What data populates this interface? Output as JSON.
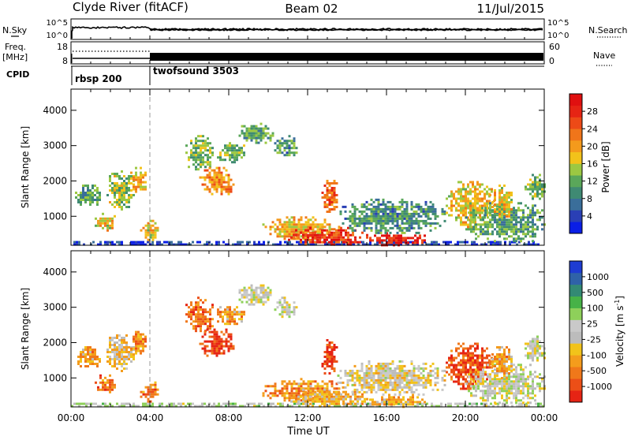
{
  "header": {
    "station": "Clyde River (fitACF)",
    "beam": "Beam 02",
    "date": "11/Jul/2015"
  },
  "strip_panels": {
    "nsky": {
      "left_label": "N.Sky",
      "right_label": "N.Search",
      "left_ticks": [
        "10^5",
        "10^0"
      ],
      "right_ticks": [
        "10^5",
        "10^0"
      ]
    },
    "freq": {
      "left_label_line1": "Freq.",
      "left_label_line2": "[MHz]",
      "right_label": "Nave",
      "left_ticks": [
        "18",
        "8"
      ],
      "right_ticks": [
        "60",
        "0"
      ]
    },
    "cpid": {
      "label": "CPID",
      "segments": [
        {
          "name": "rbsp 200",
          "start_hour": 0.0
        },
        {
          "name": "twofsound 3503",
          "start_hour": 4.0
        }
      ]
    }
  },
  "colorbars": {
    "power": {
      "label": "Power [dB]",
      "tick_labels": [
        "4",
        "8",
        "12",
        "16",
        "20",
        "24",
        "28"
      ],
      "colors": [
        "#0a1ee6",
        "#2a3fb5",
        "#3a6e9a",
        "#3f8a73",
        "#5aa75a",
        "#9cc842",
        "#f2c21a",
        "#f49a1c",
        "#f0751a",
        "#ed4a17",
        "#e62414",
        "#e01010"
      ]
    },
    "velocity": {
      "label_text": "Velocity",
      "label_unit": "[m s",
      "label_exp": "-1",
      "label_close": "]",
      "tick_labels": [
        "1000",
        "500",
        "100",
        "25",
        "-25",
        "-100",
        "-500",
        "-1000"
      ],
      "colors": [
        "#1e3cd2",
        "#2f62a8",
        "#338a74",
        "#47b247",
        "#8ed05a",
        "#c9c9c9",
        "#bcbcbc",
        "#f2c31a",
        "#f49c1c",
        "#f0781a",
        "#ec4f17",
        "#e62414"
      ]
    }
  },
  "chart_data": [
    {
      "type": "heatmap",
      "name": "power",
      "ylabel": "Slant Range [km]",
      "y_ticks": [
        "1000",
        "2000",
        "3000",
        "4000"
      ],
      "ylim": [
        180,
        4600
      ],
      "xlim": [
        0,
        24
      ],
      "x_ticks": [
        "00:00",
        "04:00",
        "08:00",
        "12:00",
        "16:00",
        "20:00",
        "00:00"
      ],
      "cpid_change_hour": 4.0,
      "blobs": [
        {
          "t0": 0.0,
          "t1": 24.0,
          "r0": 200,
          "r1": 300,
          "level": 0.1
        },
        {
          "t0": 0.2,
          "t1": 1.5,
          "r0": 1300,
          "r1": 1900,
          "level": 0.35
        },
        {
          "t0": 1.2,
          "t1": 2.2,
          "r0": 600,
          "r1": 1100,
          "level": 0.55
        },
        {
          "t0": 1.8,
          "t1": 3.2,
          "r0": 1200,
          "r1": 2300,
          "level": 0.45
        },
        {
          "t0": 3.0,
          "t1": 3.8,
          "r0": 1700,
          "r1": 2400,
          "level": 0.6
        },
        {
          "t0": 3.5,
          "t1": 4.4,
          "r0": 350,
          "r1": 900,
          "level": 0.55
        },
        {
          "t0": 5.8,
          "t1": 7.2,
          "r0": 2300,
          "r1": 3300,
          "level": 0.4
        },
        {
          "t0": 6.5,
          "t1": 8.2,
          "r0": 1600,
          "r1": 2400,
          "level": 0.65
        },
        {
          "t0": 7.4,
          "t1": 8.8,
          "r0": 2500,
          "r1": 3100,
          "level": 0.4
        },
        {
          "t0": 8.5,
          "t1": 10.3,
          "r0": 3100,
          "r1": 3650,
          "level": 0.35
        },
        {
          "t0": 10.3,
          "t1": 11.4,
          "r0": 2700,
          "r1": 3300,
          "level": 0.3
        },
        {
          "t0": 9.7,
          "t1": 13.6,
          "r0": 350,
          "r1": 1000,
          "level": 0.6
        },
        {
          "t0": 12.7,
          "t1": 13.5,
          "r0": 1100,
          "r1": 2100,
          "level": 0.75
        },
        {
          "t0": 11.0,
          "t1": 15.0,
          "r0": 200,
          "r1": 700,
          "level": 0.85
        },
        {
          "t0": 15.0,
          "t1": 18.0,
          "r0": 200,
          "r1": 550,
          "level": 0.9
        },
        {
          "t0": 13.5,
          "t1": 19.0,
          "r0": 550,
          "r1": 1500,
          "level": 0.3
        },
        {
          "t0": 19.0,
          "t1": 21.5,
          "r0": 700,
          "r1": 2000,
          "level": 0.55
        },
        {
          "t0": 20.0,
          "t1": 24.0,
          "r0": 300,
          "r1": 1400,
          "level": 0.35
        },
        {
          "t0": 21.2,
          "t1": 22.4,
          "r0": 1000,
          "r1": 1900,
          "level": 0.55
        },
        {
          "t0": 23.0,
          "t1": 24.0,
          "r0": 1500,
          "r1": 2200,
          "level": 0.4
        }
      ]
    },
    {
      "type": "heatmap",
      "name": "velocity",
      "ylabel": "Slant Range [km]",
      "y_ticks": [
        "1000",
        "2000",
        "3000",
        "4000"
      ],
      "ylim": [
        180,
        4600
      ],
      "xlim": [
        0,
        24
      ],
      "x_ticks": [
        "00:00",
        "04:00",
        "08:00",
        "12:00",
        "16:00",
        "20:00",
        "00:00"
      ],
      "xlabel": "Time UT",
      "cpid_change_hour": 4.0,
      "blobs": [
        {
          "t0": 0.0,
          "t1": 24.0,
          "r0": 200,
          "r1": 300,
          "level": 0.45
        },
        {
          "t0": 0.2,
          "t1": 1.5,
          "r0": 1300,
          "r1": 1900,
          "level": 0.7
        },
        {
          "t0": 1.2,
          "t1": 2.2,
          "r0": 600,
          "r1": 1100,
          "level": 0.8
        },
        {
          "t0": 1.8,
          "t1": 3.2,
          "r0": 1200,
          "r1": 2300,
          "level": 0.6
        },
        {
          "t0": 3.0,
          "t1": 3.8,
          "r0": 1700,
          "r1": 2400,
          "level": 0.75
        },
        {
          "t0": 3.5,
          "t1": 4.4,
          "r0": 350,
          "r1": 900,
          "level": 0.78
        },
        {
          "t0": 5.8,
          "t1": 7.2,
          "r0": 2300,
          "r1": 3300,
          "level": 0.82
        },
        {
          "t0": 6.5,
          "t1": 8.2,
          "r0": 1600,
          "r1": 2400,
          "level": 0.9
        },
        {
          "t0": 7.4,
          "t1": 8.8,
          "r0": 2500,
          "r1": 3100,
          "level": 0.7
        },
        {
          "t0": 8.5,
          "t1": 10.3,
          "r0": 3100,
          "r1": 3650,
          "level": 0.5
        },
        {
          "t0": 10.3,
          "t1": 11.4,
          "r0": 2700,
          "r1": 3300,
          "level": 0.5
        },
        {
          "t0": 9.7,
          "t1": 13.6,
          "r0": 350,
          "r1": 1000,
          "level": 0.72
        },
        {
          "t0": 12.7,
          "t1": 13.5,
          "r0": 1100,
          "r1": 2100,
          "level": 0.92
        },
        {
          "t0": 11.0,
          "t1": 15.0,
          "r0": 200,
          "r1": 700,
          "level": 0.65
        },
        {
          "t0": 15.0,
          "t1": 18.0,
          "r0": 200,
          "r1": 550,
          "level": 0.68
        },
        {
          "t0": 13.5,
          "t1": 19.0,
          "r0": 550,
          "r1": 1500,
          "level": 0.55
        },
        {
          "t0": 19.0,
          "t1": 21.5,
          "r0": 700,
          "r1": 2000,
          "level": 0.88
        },
        {
          "t0": 20.0,
          "t1": 24.0,
          "r0": 300,
          "r1": 1400,
          "level": 0.5
        },
        {
          "t0": 21.2,
          "t1": 22.4,
          "r0": 1000,
          "r1": 1900,
          "level": 0.7
        },
        {
          "t0": 23.0,
          "t1": 24.0,
          "r0": 1500,
          "r1": 2200,
          "level": 0.5
        }
      ]
    }
  ]
}
